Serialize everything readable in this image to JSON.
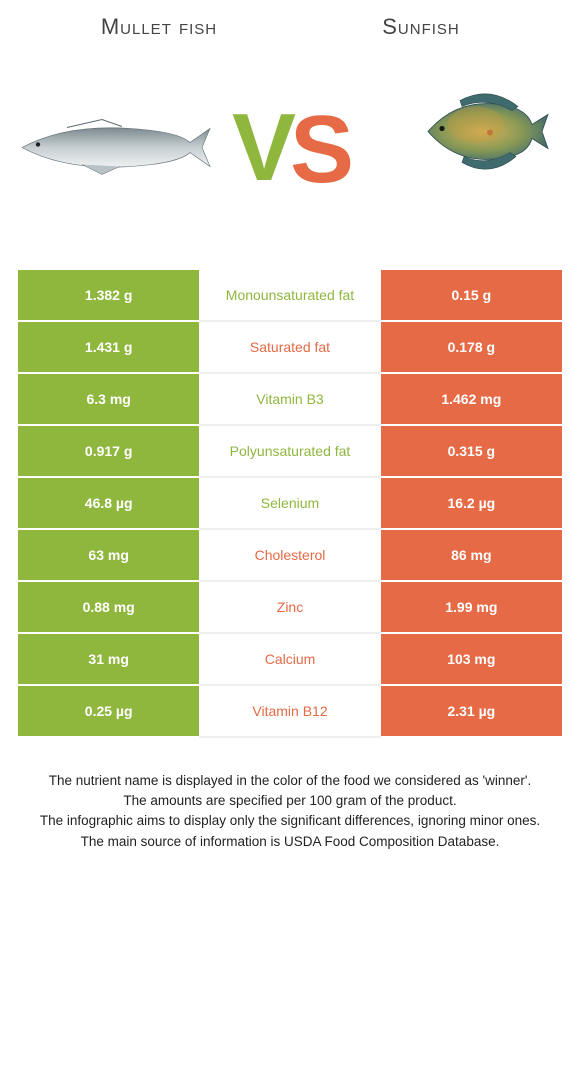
{
  "colors": {
    "left": "#8fb73e",
    "right": "#e56a45"
  },
  "header": {
    "left_title": "Mullet fish",
    "right_title": "Sunfish"
  },
  "vs": {
    "v": "V",
    "s": "S"
  },
  "rows": [
    {
      "left": "1.382 g",
      "label": "Monounsaturated fat",
      "right": "0.15 g",
      "winner": "left"
    },
    {
      "left": "1.431 g",
      "label": "Saturated fat",
      "right": "0.178 g",
      "winner": "right"
    },
    {
      "left": "6.3 mg",
      "label": "Vitamin B3",
      "right": "1.462 mg",
      "winner": "left"
    },
    {
      "left": "0.917 g",
      "label": "Polyunsaturated fat",
      "right": "0.315 g",
      "winner": "left"
    },
    {
      "left": "46.8 µg",
      "label": "Selenium",
      "right": "16.2 µg",
      "winner": "left"
    },
    {
      "left": "63 mg",
      "label": "Cholesterol",
      "right": "86 mg",
      "winner": "right"
    },
    {
      "left": "0.88 mg",
      "label": "Zinc",
      "right": "1.99 mg",
      "winner": "right"
    },
    {
      "left": "31 mg",
      "label": "Calcium",
      "right": "103 mg",
      "winner": "right"
    },
    {
      "left": "0.25 µg",
      "label": "Vitamin B12",
      "right": "2.31 µg",
      "winner": "right"
    }
  ],
  "notes": [
    "The nutrient name is displayed in the color of the food we considered as 'winner'.",
    "The amounts are specified per 100 gram of the product.",
    "The infographic aims to display only the significant differences, ignoring minor ones.",
    "The main source of information is USDA Food Composition Database."
  ]
}
